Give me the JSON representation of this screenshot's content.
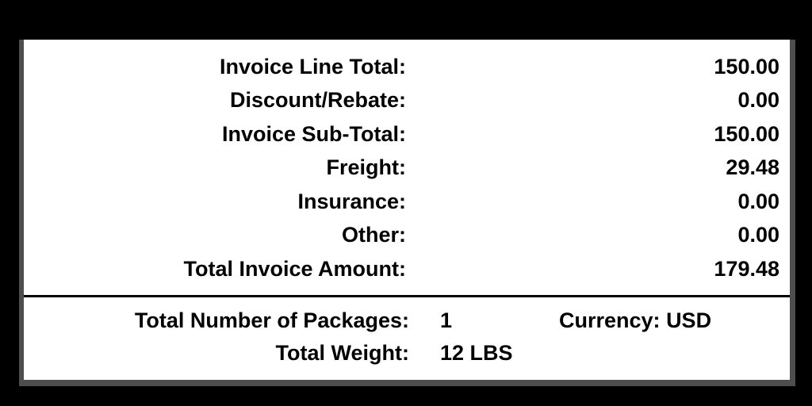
{
  "colors": {
    "background": "#000000",
    "panel": "#ffffff",
    "text": "#000000",
    "edge_shadow": "#4e4e4e"
  },
  "invoice_totals": {
    "rows": [
      {
        "label": "Invoice Line Total:",
        "value": "150.00"
      },
      {
        "label": "Discount/Rebate:",
        "value": "0.00"
      },
      {
        "label": "Invoice Sub-Total:",
        "value": "150.00"
      },
      {
        "label": "Freight:",
        "value": "29.48"
      },
      {
        "label": "Insurance:",
        "value": "0.00"
      },
      {
        "label": "Other:",
        "value": "0.00"
      },
      {
        "label": "Total Invoice Amount:",
        "value": "179.48"
      }
    ]
  },
  "shipment_info": {
    "packages_label": "Total Number of Packages:",
    "packages_value": "1",
    "currency_label": "Currency:",
    "currency_value": "USD",
    "weight_label": "Total Weight:",
    "weight_value": "12 LBS"
  }
}
